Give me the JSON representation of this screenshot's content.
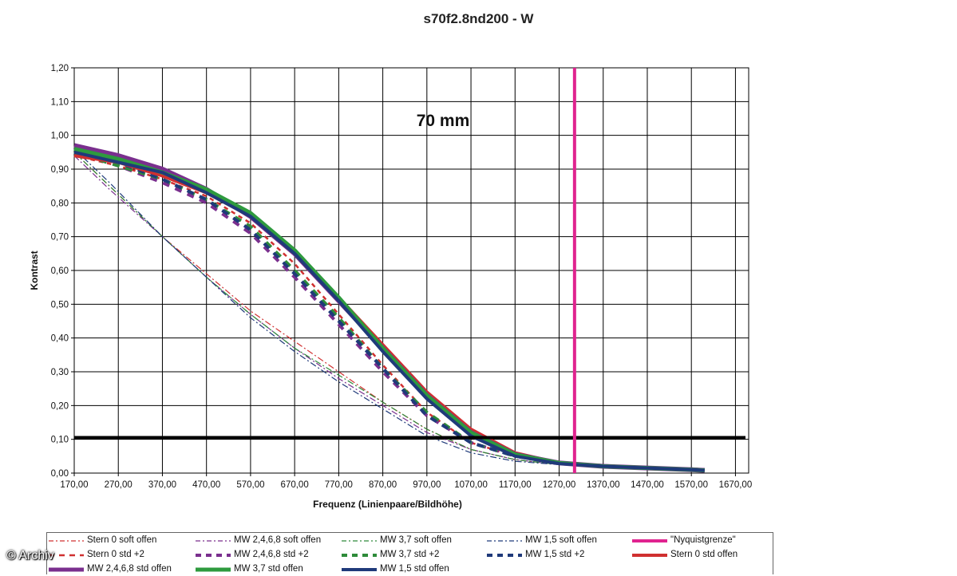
{
  "chart_data": {
    "type": "line",
    "title": "s70f2.8nd200 - W",
    "annotation": "70 mm",
    "xlabel": "Frequenz (Linienpaare/Bildhöhe)",
    "ylabel": "Kontrast",
    "xlim": [
      170,
      1700
    ],
    "ylim": [
      0,
      1.2
    ],
    "x_ticks": [
      "170,00",
      "270,00",
      "370,00",
      "470,00",
      "570,00",
      "670,00",
      "770,00",
      "870,00",
      "970,00",
      "1070,00",
      "1170,00",
      "1270,00",
      "1370,00",
      "1470,00",
      "1570,00",
      "1670,00"
    ],
    "y_ticks": [
      "0,00",
      "0,10",
      "0,20",
      "0,30",
      "0,40",
      "0,50",
      "0,60",
      "0,70",
      "0,80",
      "0,90",
      "1,00",
      "1,10",
      "1,20"
    ],
    "grid": true,
    "threshold_line": {
      "y": 0.105,
      "color": "#000000"
    },
    "nyquist_line": {
      "x": 1305,
      "color": "#e0238f"
    },
    "legend_position": "bottom",
    "series": [
      {
        "name": "Stern 0 soft offen",
        "color": "#d03030",
        "style": "dashdot",
        "width": 1.2,
        "x": [
          170,
          250,
          370,
          470,
          570,
          670,
          770,
          870,
          970,
          1070,
          1170,
          1270,
          1370,
          1470,
          1570,
          1600
        ],
        "y": [
          0.95,
          0.85,
          0.7,
          0.59,
          0.48,
          0.39,
          0.3,
          0.21,
          0.13,
          0.07,
          0.04,
          0.025,
          0.02,
          0.015,
          0.012,
          0.01
        ]
      },
      {
        "name": "MW 2,4,6,8 soft offen",
        "color": "#7a2f8e",
        "style": "dashdot",
        "width": 1.2,
        "x": [
          170,
          250,
          370,
          470,
          570,
          670,
          770,
          870,
          970,
          1070,
          1170,
          1270,
          1370,
          1470,
          1570,
          1600
        ],
        "y": [
          0.94,
          0.84,
          0.7,
          0.58,
          0.47,
          0.37,
          0.28,
          0.2,
          0.12,
          0.07,
          0.04,
          0.025,
          0.02,
          0.015,
          0.012,
          0.01
        ]
      },
      {
        "name": "MW 3,7 soft offen",
        "color": "#2e8b3a",
        "style": "dashdot",
        "width": 1.2,
        "x": [
          170,
          250,
          370,
          470,
          570,
          670,
          770,
          870,
          970,
          1070,
          1170,
          1270,
          1370,
          1470,
          1570,
          1600
        ],
        "y": [
          0.95,
          0.85,
          0.7,
          0.58,
          0.47,
          0.37,
          0.29,
          0.21,
          0.13,
          0.07,
          0.04,
          0.025,
          0.02,
          0.015,
          0.012,
          0.01
        ]
      },
      {
        "name": "MW 1,5 soft offen",
        "color": "#1f3a7a",
        "style": "dashdot",
        "width": 1.2,
        "x": [
          170,
          250,
          370,
          470,
          570,
          670,
          770,
          870,
          970,
          1070,
          1170,
          1270,
          1370,
          1470,
          1570,
          1600
        ],
        "y": [
          0.96,
          0.86,
          0.7,
          0.58,
          0.46,
          0.36,
          0.27,
          0.19,
          0.11,
          0.06,
          0.035,
          0.025,
          0.02,
          0.015,
          0.012,
          0.01
        ]
      },
      {
        "name": "\"Nyquistgrenze\"",
        "color": "#e0238f",
        "style": "solid",
        "width": 4,
        "x": [],
        "y": []
      },
      {
        "name": "Stern 0 std +2",
        "color": "#d03030",
        "style": "dashed",
        "width": 2.5,
        "x": [
          170,
          270,
          370,
          470,
          570,
          670,
          770,
          870,
          970,
          1070,
          1170,
          1270,
          1370,
          1470,
          1570,
          1600
        ],
        "y": [
          0.94,
          0.91,
          0.87,
          0.82,
          0.74,
          0.62,
          0.47,
          0.32,
          0.18,
          0.09,
          0.05,
          0.03,
          0.022,
          0.015,
          0.012,
          0.01
        ]
      },
      {
        "name": "MW 2,4,6,8 std +2",
        "color": "#7a2f8e",
        "style": "dashed",
        "width": 4,
        "x": [
          170,
          270,
          370,
          470,
          570,
          670,
          770,
          870,
          970,
          1070,
          1170,
          1270,
          1370,
          1470,
          1570,
          1600
        ],
        "y": [
          0.95,
          0.91,
          0.86,
          0.8,
          0.71,
          0.58,
          0.44,
          0.3,
          0.17,
          0.09,
          0.05,
          0.03,
          0.022,
          0.015,
          0.012,
          0.01
        ]
      },
      {
        "name": "MW 3,7 std +2",
        "color": "#2e8b3a",
        "style": "dashed",
        "width": 4,
        "x": [
          170,
          270,
          370,
          470,
          570,
          670,
          770,
          870,
          970,
          1070,
          1170,
          1270,
          1370,
          1470,
          1570,
          1600
        ],
        "y": [
          0.95,
          0.91,
          0.87,
          0.81,
          0.73,
          0.6,
          0.46,
          0.31,
          0.18,
          0.09,
          0.05,
          0.03,
          0.022,
          0.015,
          0.012,
          0.01
        ]
      },
      {
        "name": "MW 1,5 std +2",
        "color": "#1f3a7a",
        "style": "dashed",
        "width": 4,
        "x": [
          170,
          270,
          370,
          470,
          570,
          670,
          770,
          870,
          970,
          1070,
          1170,
          1270,
          1370,
          1470,
          1570,
          1600
        ],
        "y": [
          0.96,
          0.92,
          0.87,
          0.81,
          0.72,
          0.59,
          0.45,
          0.31,
          0.17,
          0.09,
          0.05,
          0.03,
          0.022,
          0.015,
          0.012,
          0.01
        ]
      },
      {
        "name": "Stern 0 std offen",
        "color": "#d03030",
        "style": "solid",
        "width": 4,
        "x": [
          170,
          270,
          370,
          470,
          570,
          670,
          770,
          870,
          970,
          1070,
          1170,
          1270,
          1370,
          1470,
          1570,
          1600
        ],
        "y": [
          0.94,
          0.92,
          0.88,
          0.83,
          0.76,
          0.65,
          0.52,
          0.38,
          0.24,
          0.13,
          0.06,
          0.03,
          0.02,
          0.015,
          0.01,
          0.008
        ]
      },
      {
        "name": "MW 2,4,6,8 std offen",
        "color": "#7a2f8e",
        "style": "solid",
        "width": 6,
        "x": [
          170,
          270,
          370,
          470,
          570,
          670,
          770,
          870,
          970,
          1070,
          1170,
          1270,
          1370,
          1470,
          1570,
          1600
        ],
        "y": [
          0.97,
          0.94,
          0.9,
          0.84,
          0.76,
          0.65,
          0.51,
          0.37,
          0.23,
          0.12,
          0.055,
          0.03,
          0.02,
          0.015,
          0.01,
          0.008
        ]
      },
      {
        "name": "MW 3,7 std offen",
        "color": "#2e9a3e",
        "style": "solid",
        "width": 5,
        "x": [
          170,
          270,
          370,
          470,
          570,
          670,
          770,
          870,
          970,
          1070,
          1170,
          1270,
          1370,
          1470,
          1570,
          1600
        ],
        "y": [
          0.96,
          0.93,
          0.89,
          0.84,
          0.77,
          0.66,
          0.52,
          0.37,
          0.23,
          0.12,
          0.055,
          0.03,
          0.02,
          0.015,
          0.01,
          0.008
        ]
      },
      {
        "name": "MW 1,5 std offen",
        "color": "#1f3a7a",
        "style": "solid",
        "width": 4,
        "x": [
          170,
          270,
          370,
          470,
          570,
          670,
          770,
          870,
          970,
          1070,
          1170,
          1270,
          1370,
          1470,
          1570,
          1600
        ],
        "y": [
          0.95,
          0.92,
          0.89,
          0.83,
          0.76,
          0.65,
          0.51,
          0.36,
          0.22,
          0.11,
          0.05,
          0.028,
          0.02,
          0.015,
          0.01,
          0.008
        ]
      }
    ]
  },
  "watermark": "© Archiv"
}
